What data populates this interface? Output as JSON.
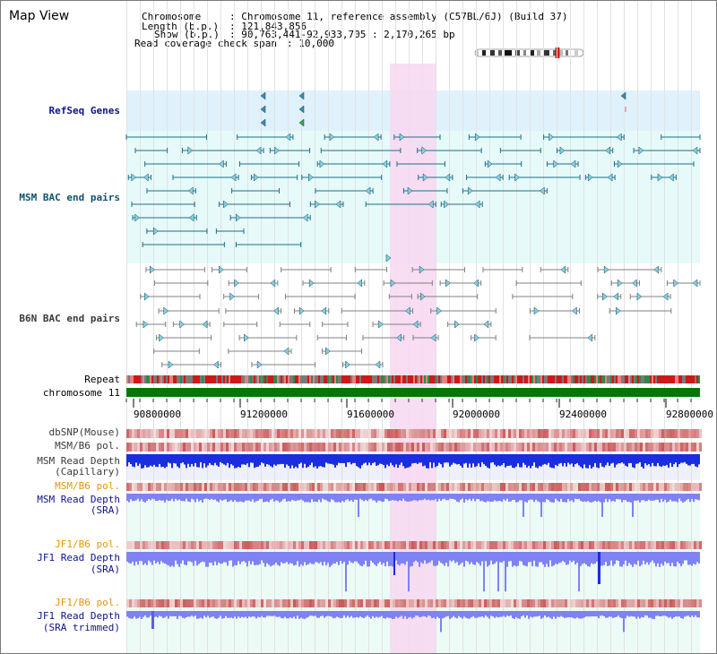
{
  "title": "Map View",
  "header": {
    "chromosome_key": "Chromosome",
    "chromosome_val": ": Chromosome 11, reference assembly (C57BL/6J) (Build 37)",
    "length_key": "Length (b.p.)",
    "length_val": ": 121,843,856",
    "show_key": "Show (b.p.)",
    "show_val": ": 90,763,441-92,933,705 : 2,170,265 bp",
    "read_key": "Read coverage check span",
    "read_val": ": 10,000"
  },
  "tracks": {
    "refseq": "RefSeq Genes",
    "msm_bac": "MSM BAC end pairs",
    "b6n_bac": "B6N BAC end pairs",
    "repeat": "Repeat",
    "chromosome": "chromosome 11",
    "dbsnp": "dbSNP(Mouse)",
    "msm_b6_pol": "MSM/B6 pol.",
    "msm_depth_cap_1": "MSM Read Depth",
    "msm_depth_cap_2": "(Capillary)",
    "msm_b6_pol_sra": "MSM/B6 pol.",
    "msm_depth_sra_1": "MSM Read Depth",
    "msm_depth_sra_2": "(SRA)",
    "jf1_b6_pol": "JF1/B6 pol.",
    "jf1_depth_1": "JF1 Read Depth",
    "jf1_depth_2": "(SRA)",
    "jf1_b6_pol_trim": "JF1/B6 pol.",
    "jf1_trim_1": "JF1 Read Depth",
    "jf1_trim_2": "(SRA trimmed)"
  },
  "axis": {
    "ticks": [
      "90800000",
      "91200000",
      "91600000",
      "92000000",
      "92400000",
      "92800000"
    ]
  },
  "colors": {
    "highlight": "#f7d9f2",
    "refseq_bg": "#dff1fb",
    "msm_bg": "#e6fafa",
    "msm_feature": "#1f6f86",
    "b6n_feature": "#808080",
    "chromosome": "#087508",
    "depth_capillary": "#1a2ee0",
    "depth_sra": "#7f82f3"
  }
}
